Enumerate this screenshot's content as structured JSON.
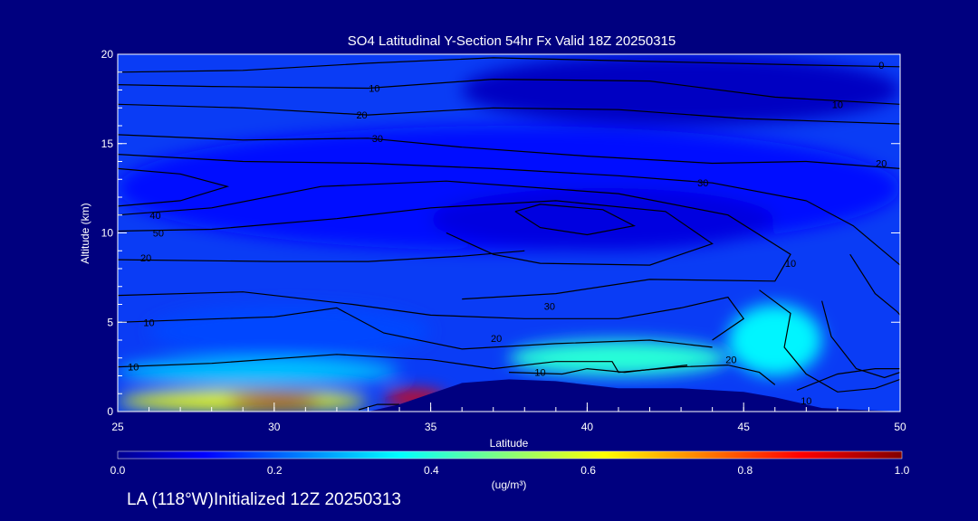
{
  "chart_data": {
    "type": "heatmap",
    "title": "SO4 Latitudinal Y-Section 54hr  Fx Valid 18Z 20250315",
    "xlabel": "Latitude",
    "ylabel": "Altitude (km)",
    "xlim": [
      25,
      50
    ],
    "ylim": [
      0,
      20
    ],
    "x_ticks": [
      "25",
      "30",
      "35",
      "40",
      "45",
      "50"
    ],
    "y_ticks": [
      "0",
      "5",
      "10",
      "15",
      "20"
    ],
    "colorbar": {
      "label": "(ug/m³)",
      "range": [
        0.0,
        1.0
      ],
      "ticks": [
        "0.0",
        "0.2",
        "0.4",
        "0.6",
        "0.8",
        "1.0"
      ]
    },
    "contour_labels": [
      {
        "text": "0",
        "lat": 49.4,
        "alt": 19.4
      },
      {
        "text": "10",
        "lat": 33.2,
        "alt": 18.1
      },
      {
        "text": "10",
        "lat": 48.0,
        "alt": 17.2
      },
      {
        "text": "20",
        "lat": 32.8,
        "alt": 16.6
      },
      {
        "text": "30",
        "lat": 33.3,
        "alt": 15.3
      },
      {
        "text": "20",
        "lat": 49.4,
        "alt": 13.9
      },
      {
        "text": "30",
        "lat": 43.7,
        "alt": 12.8
      },
      {
        "text": "40",
        "lat": 26.2,
        "alt": 11.0
      },
      {
        "text": "50",
        "lat": 26.3,
        "alt": 10.0
      },
      {
        "text": "20",
        "lat": 25.9,
        "alt": 8.6
      },
      {
        "text": "10",
        "lat": 46.5,
        "alt": 8.3
      },
      {
        "text": "30",
        "lat": 38.8,
        "alt": 5.9
      },
      {
        "text": "10",
        "lat": 26.0,
        "alt": 5.0
      },
      {
        "text": "20",
        "lat": 37.1,
        "alt": 4.1
      },
      {
        "text": "20",
        "lat": 44.6,
        "alt": 2.9
      },
      {
        "text": "10",
        "lat": 25.5,
        "alt": 2.5
      },
      {
        "text": "10",
        "lat": 38.5,
        "alt": 2.2
      },
      {
        "text": "10",
        "lat": 47.0,
        "alt": 0.6
      }
    ],
    "field_regions": [
      {
        "value": 0.05,
        "lat": [
          36.0,
          50.0
        ],
        "alt": [
          16.0,
          20.0
        ]
      },
      {
        "value": 0.12,
        "lat": [
          25.0,
          50.0
        ],
        "alt": [
          9.0,
          16.0
        ]
      },
      {
        "value": 0.08,
        "lat": [
          35.0,
          46.0
        ],
        "alt": [
          9.0,
          12.5
        ]
      },
      {
        "value": 0.18,
        "lat": [
          26.0,
          35.0
        ],
        "alt": [
          3.0,
          6.0
        ]
      },
      {
        "value": 0.4,
        "lat": [
          37.5,
          44.5
        ],
        "alt": [
          2.0,
          4.0
        ]
      },
      {
        "value": 0.35,
        "lat": [
          44.5,
          47.5
        ],
        "alt": [
          2.0,
          6.0
        ]
      },
      {
        "value": 0.3,
        "lat": [
          25.0,
          34.0
        ],
        "alt": [
          1.5,
          3.0
        ]
      },
      {
        "value": 0.6,
        "lat": [
          25.0,
          33.0
        ],
        "alt": [
          0.0,
          1.2
        ]
      },
      {
        "value": 0.95,
        "lat": [
          28.5,
          31.5
        ],
        "alt": [
          0.2,
          1.0
        ]
      },
      {
        "value": 0.9,
        "lat": [
          33.5,
          35.5
        ],
        "alt": [
          0.3,
          1.2
        ]
      }
    ],
    "terrain_alt_km": [
      [
        25.0,
        0.0
      ],
      [
        33.0,
        0.0
      ],
      [
        34.0,
        0.4
      ],
      [
        35.0,
        1.0
      ],
      [
        36.0,
        1.6
      ],
      [
        37.5,
        1.8
      ],
      [
        39.0,
        1.7
      ],
      [
        41.0,
        1.3
      ],
      [
        43.0,
        1.3
      ],
      [
        45.0,
        1.1
      ],
      [
        46.0,
        0.8
      ],
      [
        47.5,
        0.2
      ],
      [
        50.0,
        0.0
      ]
    ]
  },
  "footer": {
    "caption": "LA (118°W)Initialized 12Z 20250313"
  },
  "colors": {
    "background": "#00007f",
    "axes_and_text": "#ffffff",
    "contour_line": "#000000",
    "terrain": "#000080"
  }
}
